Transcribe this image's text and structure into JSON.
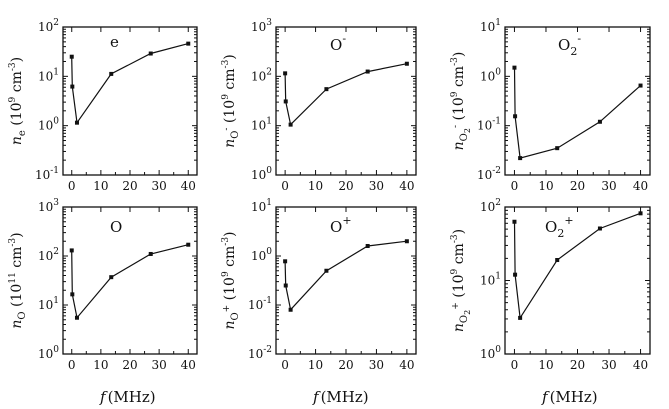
{
  "x_label": {
    "f": "f",
    "unit": "(MHz)"
  },
  "chart_data": [
    {
      "type": "line",
      "title": {
        "b": "e"
      },
      "ylabel": {
        "sym": "n",
        "sub": "e",
        "sup": "",
        "exp": "9"
      },
      "ylim": [
        0.1,
        100
      ],
      "yscale": "log",
      "xlim": [
        -3,
        43
      ],
      "xticks": [
        0,
        10,
        20,
        30,
        40
      ],
      "yticks": [
        {
          "m": "10",
          "e": "-1"
        },
        {
          "m": "10",
          "e": "0"
        },
        {
          "m": "10",
          "e": "1"
        },
        {
          "m": "10",
          "e": "2"
        }
      ],
      "x": [
        0,
        0.2,
        1.8,
        13.56,
        27.12,
        40
      ],
      "y": [
        25,
        6.2,
        1.15,
        11.2,
        29,
        46
      ]
    },
    {
      "type": "line",
      "title": {
        "b": "O",
        "sup": "-"
      },
      "ylabel": {
        "sym": "n",
        "sub": "O",
        "sup": "-",
        "exp": "9"
      },
      "ylim": [
        1,
        1000
      ],
      "yscale": "log",
      "xlim": [
        -3,
        43
      ],
      "xticks": [
        0,
        10,
        20,
        30,
        40
      ],
      "yticks": [
        {
          "m": "10",
          "e": "0"
        },
        {
          "m": "10",
          "e": "1"
        },
        {
          "m": "10",
          "e": "2"
        },
        {
          "m": "10",
          "e": "3"
        }
      ],
      "x": [
        0,
        0.2,
        1.8,
        13.56,
        27.12,
        40
      ],
      "y": [
        115,
        31,
        10.5,
        55,
        125,
        180
      ]
    },
    {
      "type": "line",
      "title": {
        "b": "O",
        "sub": "2",
        "sup": "-"
      },
      "ylabel": {
        "sym": "n",
        "sub": "O",
        "sub2": "2",
        "sup": "-",
        "exp": "9"
      },
      "ylim": [
        0.01,
        10
      ],
      "yscale": "log",
      "xlim": [
        -3,
        43
      ],
      "xticks": [
        0,
        10,
        20,
        30,
        40
      ],
      "yticks": [
        {
          "m": "10",
          "e": "-2"
        },
        {
          "m": "10",
          "e": "-1"
        },
        {
          "m": "10",
          "e": "0"
        },
        {
          "m": "10",
          "e": "1"
        }
      ],
      "x": [
        0,
        0.2,
        1.8,
        13.56,
        27.12,
        40
      ],
      "y": [
        1.5,
        0.155,
        0.022,
        0.035,
        0.12,
        0.65
      ]
    },
    {
      "type": "line",
      "title": {
        "b": "O"
      },
      "ylabel": {
        "sym": "n",
        "sub": "O",
        "sup": "",
        "exp": "11"
      },
      "ylim": [
        1,
        1000
      ],
      "yscale": "log",
      "xlim": [
        -3,
        43
      ],
      "xticks": [
        0,
        10,
        20,
        30,
        40
      ],
      "yticks": [
        {
          "m": "10",
          "e": "0"
        },
        {
          "m": "10",
          "e": "1"
        },
        {
          "m": "10",
          "e": "2"
        },
        {
          "m": "10",
          "e": "3"
        }
      ],
      "x": [
        0,
        0.2,
        1.8,
        13.56,
        27.12,
        40
      ],
      "y": [
        130,
        16.5,
        5.5,
        37,
        110,
        170
      ]
    },
    {
      "type": "line",
      "title": {
        "b": "O",
        "sup": "+"
      },
      "ylabel": {
        "sym": "n",
        "sub": "O",
        "sup": "+",
        "exp": "9"
      },
      "ylim": [
        0.01,
        10
      ],
      "yscale": "log",
      "xlim": [
        -3,
        43
      ],
      "xticks": [
        0,
        10,
        20,
        30,
        40
      ],
      "yticks": [
        {
          "m": "10",
          "e": "-2"
        },
        {
          "m": "10",
          "e": "-1"
        },
        {
          "m": "10",
          "e": "0"
        },
        {
          "m": "10",
          "e": "1"
        }
      ],
      "x": [
        0,
        0.2,
        1.8,
        13.56,
        27.12,
        40
      ],
      "y": [
        0.78,
        0.25,
        0.08,
        0.5,
        1.6,
        2.0
      ]
    },
    {
      "type": "line",
      "title": {
        "b": "O",
        "sub": "2",
        "sup": "+"
      },
      "ylabel": {
        "sym": "n",
        "sub": "O",
        "sub2": "2",
        "sup": "+",
        "exp": "9"
      },
      "ylim": [
        1,
        100
      ],
      "yscale": "log",
      "xlim": [
        -3,
        43
      ],
      "xticks": [
        0,
        10,
        20,
        30,
        40
      ],
      "yticks": [
        {
          "m": "10",
          "e": "0"
        },
        {
          "m": "10",
          "e": "1"
        },
        {
          "m": "10",
          "e": "2"
        }
      ],
      "x": [
        0,
        0.2,
        1.8,
        13.56,
        27.12,
        40
      ],
      "y": [
        63,
        12,
        3.1,
        19,
        51,
        82
      ]
    }
  ]
}
